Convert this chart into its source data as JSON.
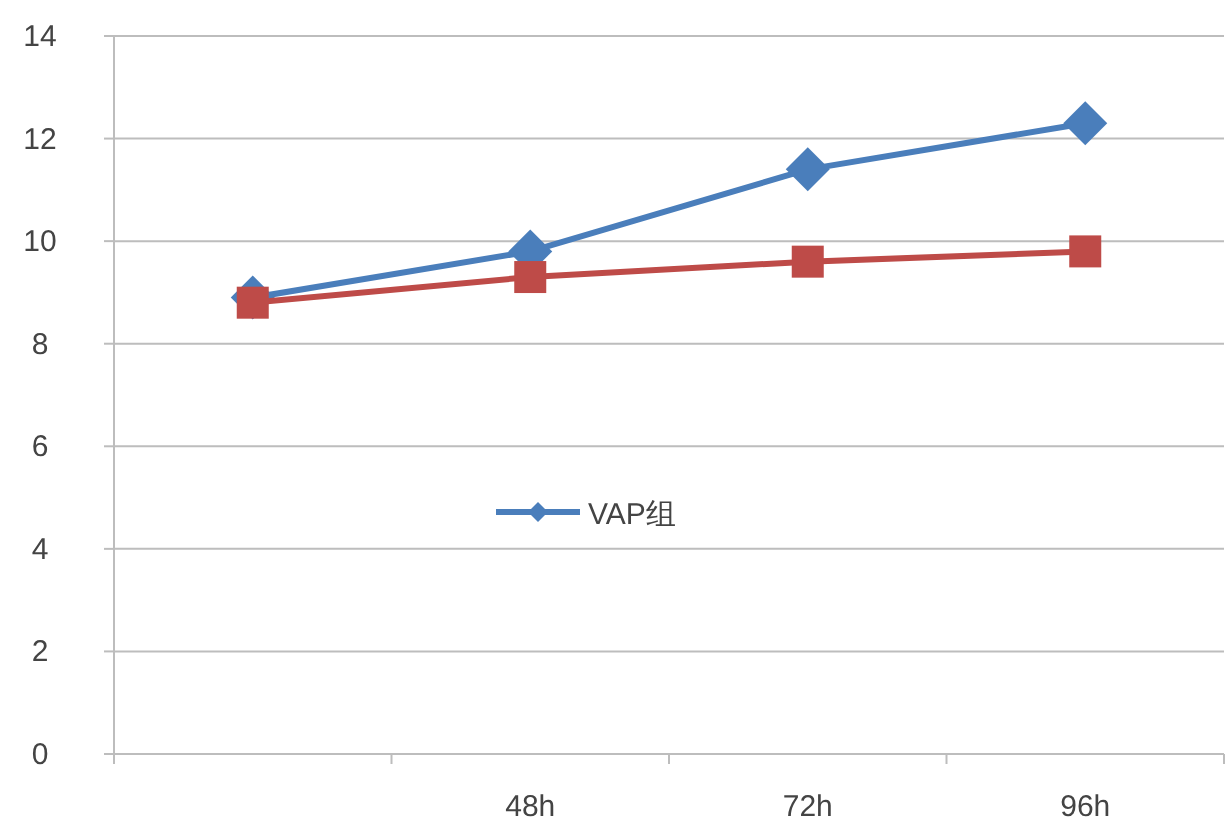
{
  "chart_data": {
    "type": "line",
    "categories": [
      null,
      "48h",
      "72h",
      "96h"
    ],
    "series": [
      {
        "name": "VAP组",
        "color": "#4a7ebb",
        "marker": "diamond",
        "values": [
          8.9,
          9.8,
          11.4,
          12.3
        ]
      },
      {
        "color": "#be4b48",
        "marker": "square",
        "values": [
          8.8,
          9.3,
          9.6,
          9.8
        ]
      }
    ],
    "ylim": [
      0,
      14
    ],
    "yticks": [
      0,
      2,
      4,
      6,
      8,
      10,
      12,
      14
    ],
    "grid": "y",
    "legend": "center"
  }
}
